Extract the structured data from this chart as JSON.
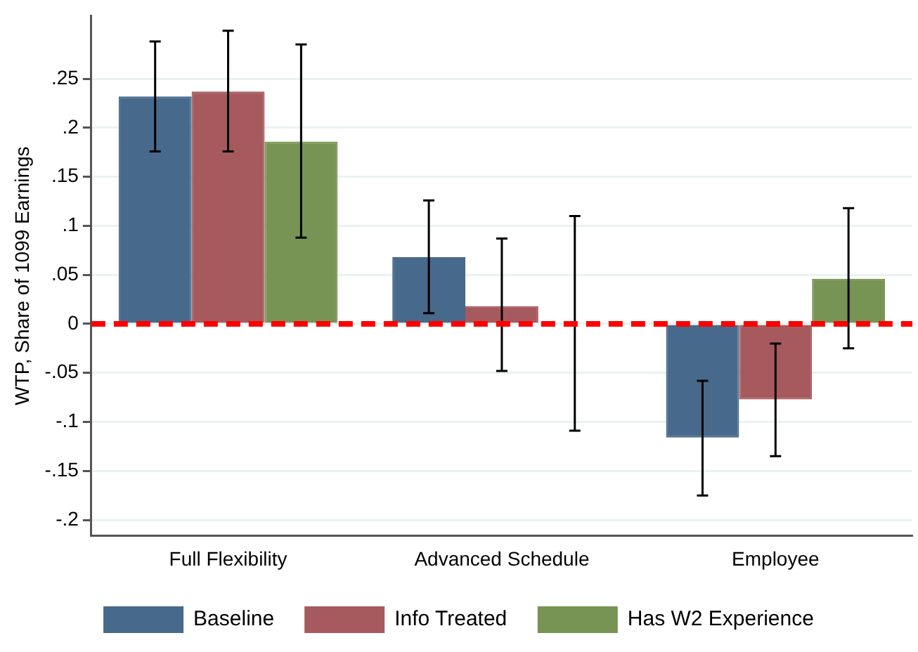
{
  "chart_data": {
    "type": "bar",
    "ylabel": "WTP, Share of 1099 Earnings",
    "categories": [
      "Full Flexibility",
      "Advanced Schedule",
      "Employee"
    ],
    "series": [
      {
        "name": "Baseline",
        "color": "#476a8c",
        "values": [
          0.232,
          0.068,
          -0.116
        ],
        "errors": [
          [
            0.176,
            0.288
          ],
          [
            0.011,
            0.126
          ],
          [
            -0.175,
            -0.058
          ]
        ]
      },
      {
        "name": "Info Treated",
        "color": "#a65a5e",
        "values": [
          0.237,
          0.018,
          -0.077
        ],
        "errors": [
          [
            0.176,
            0.299
          ],
          [
            -0.048,
            0.087
          ],
          [
            -0.135,
            -0.02
          ]
        ]
      },
      {
        "name": "Has W2 Experience",
        "color": "#789454",
        "values": [
          0.186,
          0.001,
          0.046
        ],
        "errors": [
          [
            0.088,
            0.285
          ],
          [
            -0.109,
            0.11
          ],
          [
            -0.025,
            0.118
          ]
        ]
      }
    ],
    "ylim": [
      -0.216,
      0.314
    ],
    "yticks": [
      {
        "value": -0.2,
        "label": "-.2"
      },
      {
        "value": -0.15,
        "label": "-.15"
      },
      {
        "value": -0.1,
        "label": "-.1"
      },
      {
        "value": -0.05,
        "label": "-.05"
      },
      {
        "value": 0,
        "label": "0"
      },
      {
        "value": 0.05,
        "label": ".05"
      },
      {
        "value": 0.1,
        "label": ".1"
      },
      {
        "value": 0.15,
        "label": ".15"
      },
      {
        "value": 0.2,
        "label": ".2"
      },
      {
        "value": 0.25,
        "label": ".25"
      }
    ],
    "ref_lines": [
      {
        "axis": "y",
        "value": 0,
        "color": "#ff0000",
        "line_style": "dashed"
      }
    ],
    "grid": "y",
    "legend": "bottom"
  }
}
